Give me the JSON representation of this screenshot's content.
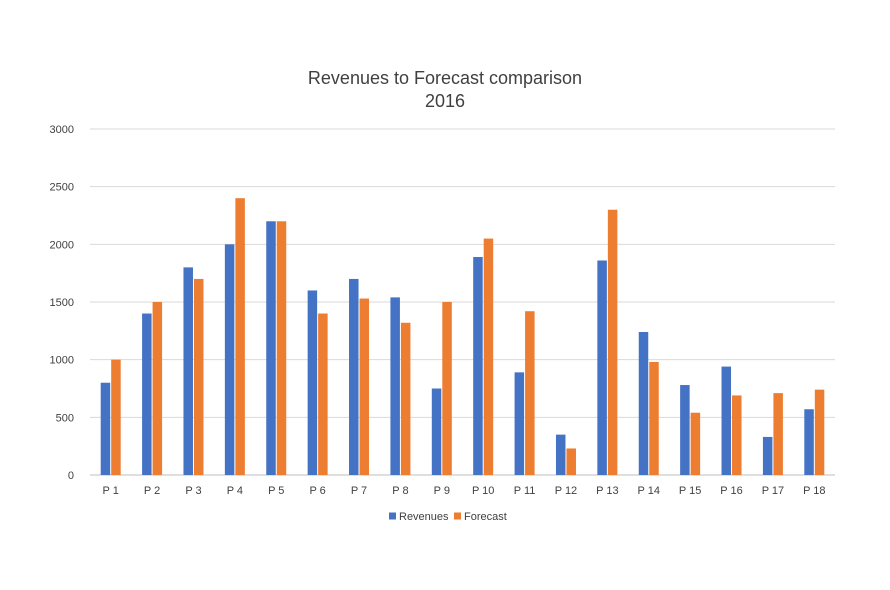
{
  "chart_data": {
    "type": "bar",
    "title": "Revenues to Forecast comparison",
    "subtitle": "2016",
    "xlabel": "",
    "ylabel": "",
    "ylim": [
      0,
      3000
    ],
    "yticks": [
      0,
      500,
      1000,
      1500,
      2000,
      2500,
      3000
    ],
    "grid": true,
    "legend_position": "bottom",
    "categories": [
      "P 1",
      "P 2",
      "P 3",
      "P 4",
      "P 5",
      "P 6",
      "P 7",
      "P 8",
      "P 9",
      "P 10",
      "P 11",
      "P 12",
      "P 13",
      "P 14",
      "P 15",
      "P 16",
      "P 17",
      "P 18"
    ],
    "series": [
      {
        "name": "Revenues",
        "color": "#4472c4",
        "values": [
          800,
          1400,
          1800,
          2000,
          2200,
          1600,
          1700,
          1540,
          750,
          1890,
          890,
          350,
          1860,
          1240,
          780,
          940,
          330,
          570
        ]
      },
      {
        "name": "Forecast",
        "color": "#ed7d31",
        "values": [
          1000,
          1500,
          1700,
          2400,
          2200,
          1400,
          1530,
          1320,
          1500,
          2050,
          1420,
          230,
          2300,
          980,
          540,
          690,
          710,
          740
        ]
      }
    ]
  }
}
